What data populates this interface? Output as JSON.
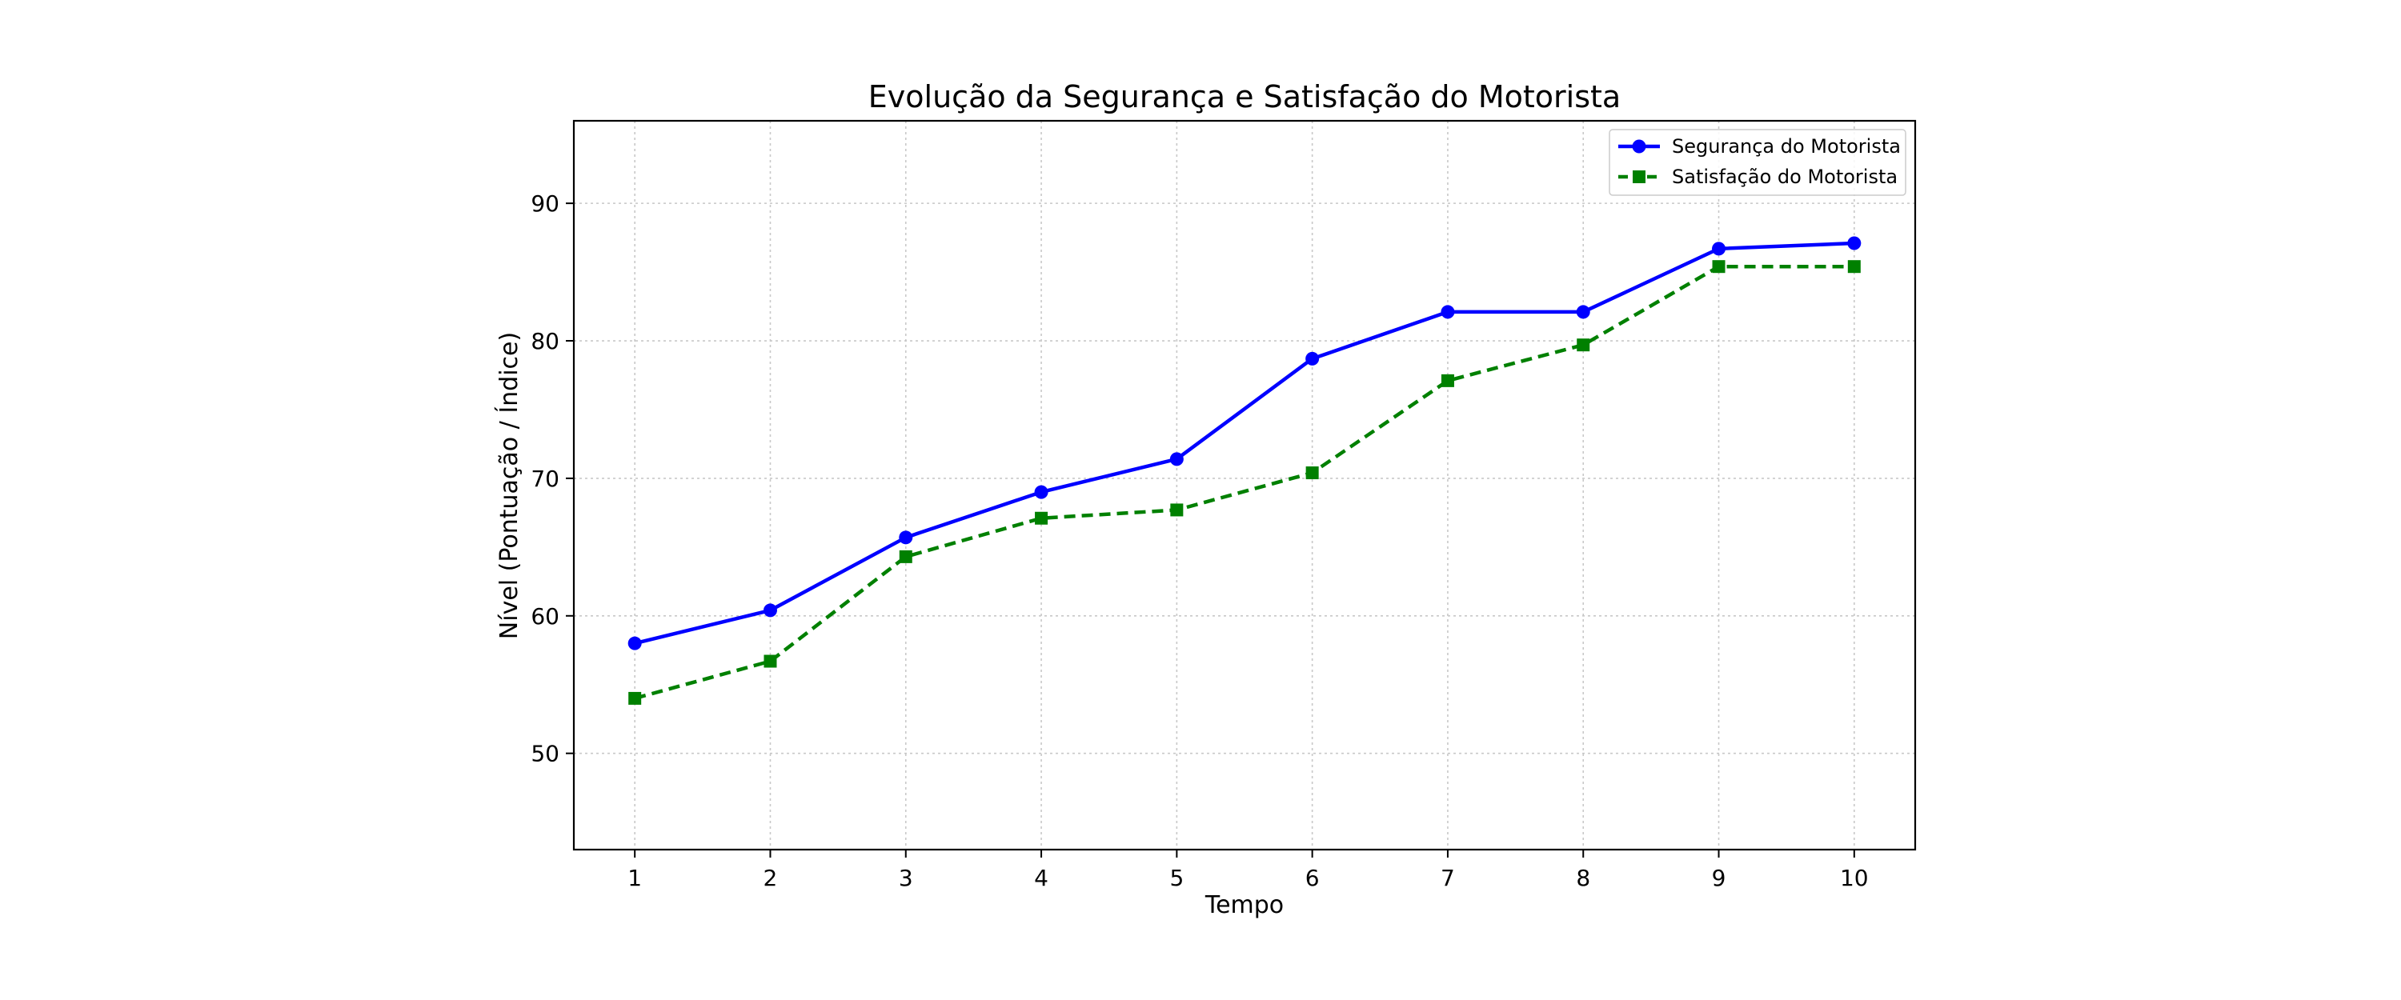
{
  "chart_data": {
    "type": "line",
    "title": "Evolução da Segurança e Satisfação do Motorista",
    "xlabel": "Tempo",
    "ylabel": "Nível (Pontuação / Índice)",
    "x": [
      1,
      2,
      3,
      4,
      5,
      6,
      7,
      8,
      9,
      10
    ],
    "xlim": [
      0.55,
      10.45
    ],
    "ylim": [
      43,
      96
    ],
    "yticks": [
      50,
      60,
      70,
      80,
      90
    ],
    "grid": true,
    "legend_position": "top-right",
    "series": [
      {
        "name": "Segurança do Motorista",
        "color": "#0000ff",
        "marker": "circle",
        "linestyle": "solid",
        "values": [
          58.0,
          60.4,
          65.7,
          69.0,
          71.4,
          78.7,
          82.1,
          82.1,
          86.7,
          87.1
        ]
      },
      {
        "name": "Satisfação do Motorista",
        "color": "#008000",
        "marker": "square",
        "linestyle": "dashed",
        "values": [
          54.0,
          56.7,
          64.3,
          67.1,
          67.7,
          70.4,
          77.1,
          79.7,
          85.4,
          85.4
        ]
      }
    ]
  }
}
